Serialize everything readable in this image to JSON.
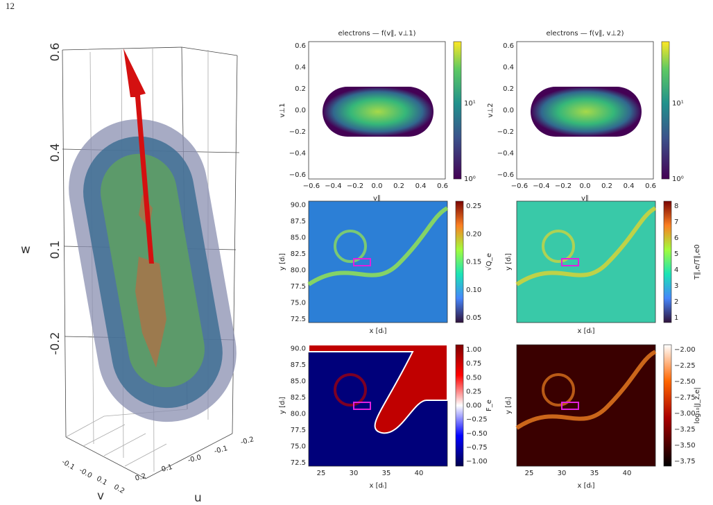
{
  "page_number": "12",
  "panel_3d": {
    "w_label": "w",
    "v_label": "v",
    "u_label": "u",
    "w_ticks": [
      "0.6",
      "0.4",
      "0.1",
      "-0.2"
    ],
    "v_ticks": [
      "-0.1",
      "-0.0",
      "0.1",
      "0.2"
    ],
    "u_ticks": [
      "0.2",
      "0.1",
      "-0.0",
      "-0.1",
      "-0.2"
    ]
  },
  "distribution_panels": [
    {
      "title": "electrons — f(v∥, v⊥1)",
      "x_label": "v∥",
      "y_label": "v⊥1",
      "x_ticks": [
        "−0.6",
        "−0.4",
        "−0.2",
        "0.0",
        "0.2",
        "0.4",
        "0.6"
      ],
      "y_ticks": [
        "0.6",
        "0.4",
        "0.2",
        "0.0",
        "−0.2",
        "−0.4",
        "−0.6"
      ],
      "colorbar_ticks": [
        "10¹",
        "10⁰"
      ]
    },
    {
      "title": "electrons — f(v∥, v⊥2)",
      "x_label": "v∥",
      "y_label": "v⊥2",
      "x_ticks": [
        "−0.6",
        "−0.4",
        "−0.2",
        "0.0",
        "0.2",
        "0.4",
        "0.6"
      ],
      "y_ticks": [
        "0.6",
        "0.4",
        "0.2",
        "0.0",
        "−0.2",
        "−0.4",
        "−0.6"
      ],
      "colorbar_ticks": [
        "10¹",
        "10⁰"
      ]
    }
  ],
  "map_panels": [
    {
      "x_label": "x [dᵢ]",
      "y_label": "y [dᵢ]",
      "y_ticks": [
        "90.0",
        "87.5",
        "85.0",
        "82.5",
        "80.0",
        "77.5",
        "75.0",
        "72.5"
      ],
      "colorbar_label": "√Q_e",
      "colorbar_ticks": [
        "0.25",
        "0.20",
        "0.15",
        "0.10",
        "0.05"
      ]
    },
    {
      "x_label": "x [dᵢ]",
      "y_label": "y [dᵢ]",
      "colorbar_label": "T∥,e/T∥,e0",
      "colorbar_ticks": [
        "8",
        "7",
        "6",
        "5",
        "4",
        "3",
        "2",
        "1"
      ]
    },
    {
      "x_label": "x [dᵢ]",
      "y_label": "y [dᵢ]",
      "x_ticks": [
        "25",
        "30",
        "35",
        "40"
      ],
      "y_ticks": [
        "90.0",
        "87.5",
        "85.0",
        "82.5",
        "80.0",
        "77.5",
        "75.0",
        "72.5"
      ],
      "colorbar_label": "F_e",
      "colorbar_ticks": [
        "1.00",
        "0.75",
        "0.50",
        "0.25",
        "0.00",
        "−0.25",
        "−0.50",
        "−0.75",
        "−1.00"
      ]
    },
    {
      "x_label": "x [dᵢ]",
      "y_label": "y [dᵢ]",
      "x_ticks": [
        "25",
        "30",
        "35",
        "40"
      ],
      "colorbar_label": "log₁₀|J_z,e|",
      "colorbar_ticks": [
        "−2.00",
        "−2.25",
        "−2.50",
        "−2.75",
        "−3.00",
        "−3.25",
        "−3.50",
        "−3.75"
      ]
    }
  ]
}
